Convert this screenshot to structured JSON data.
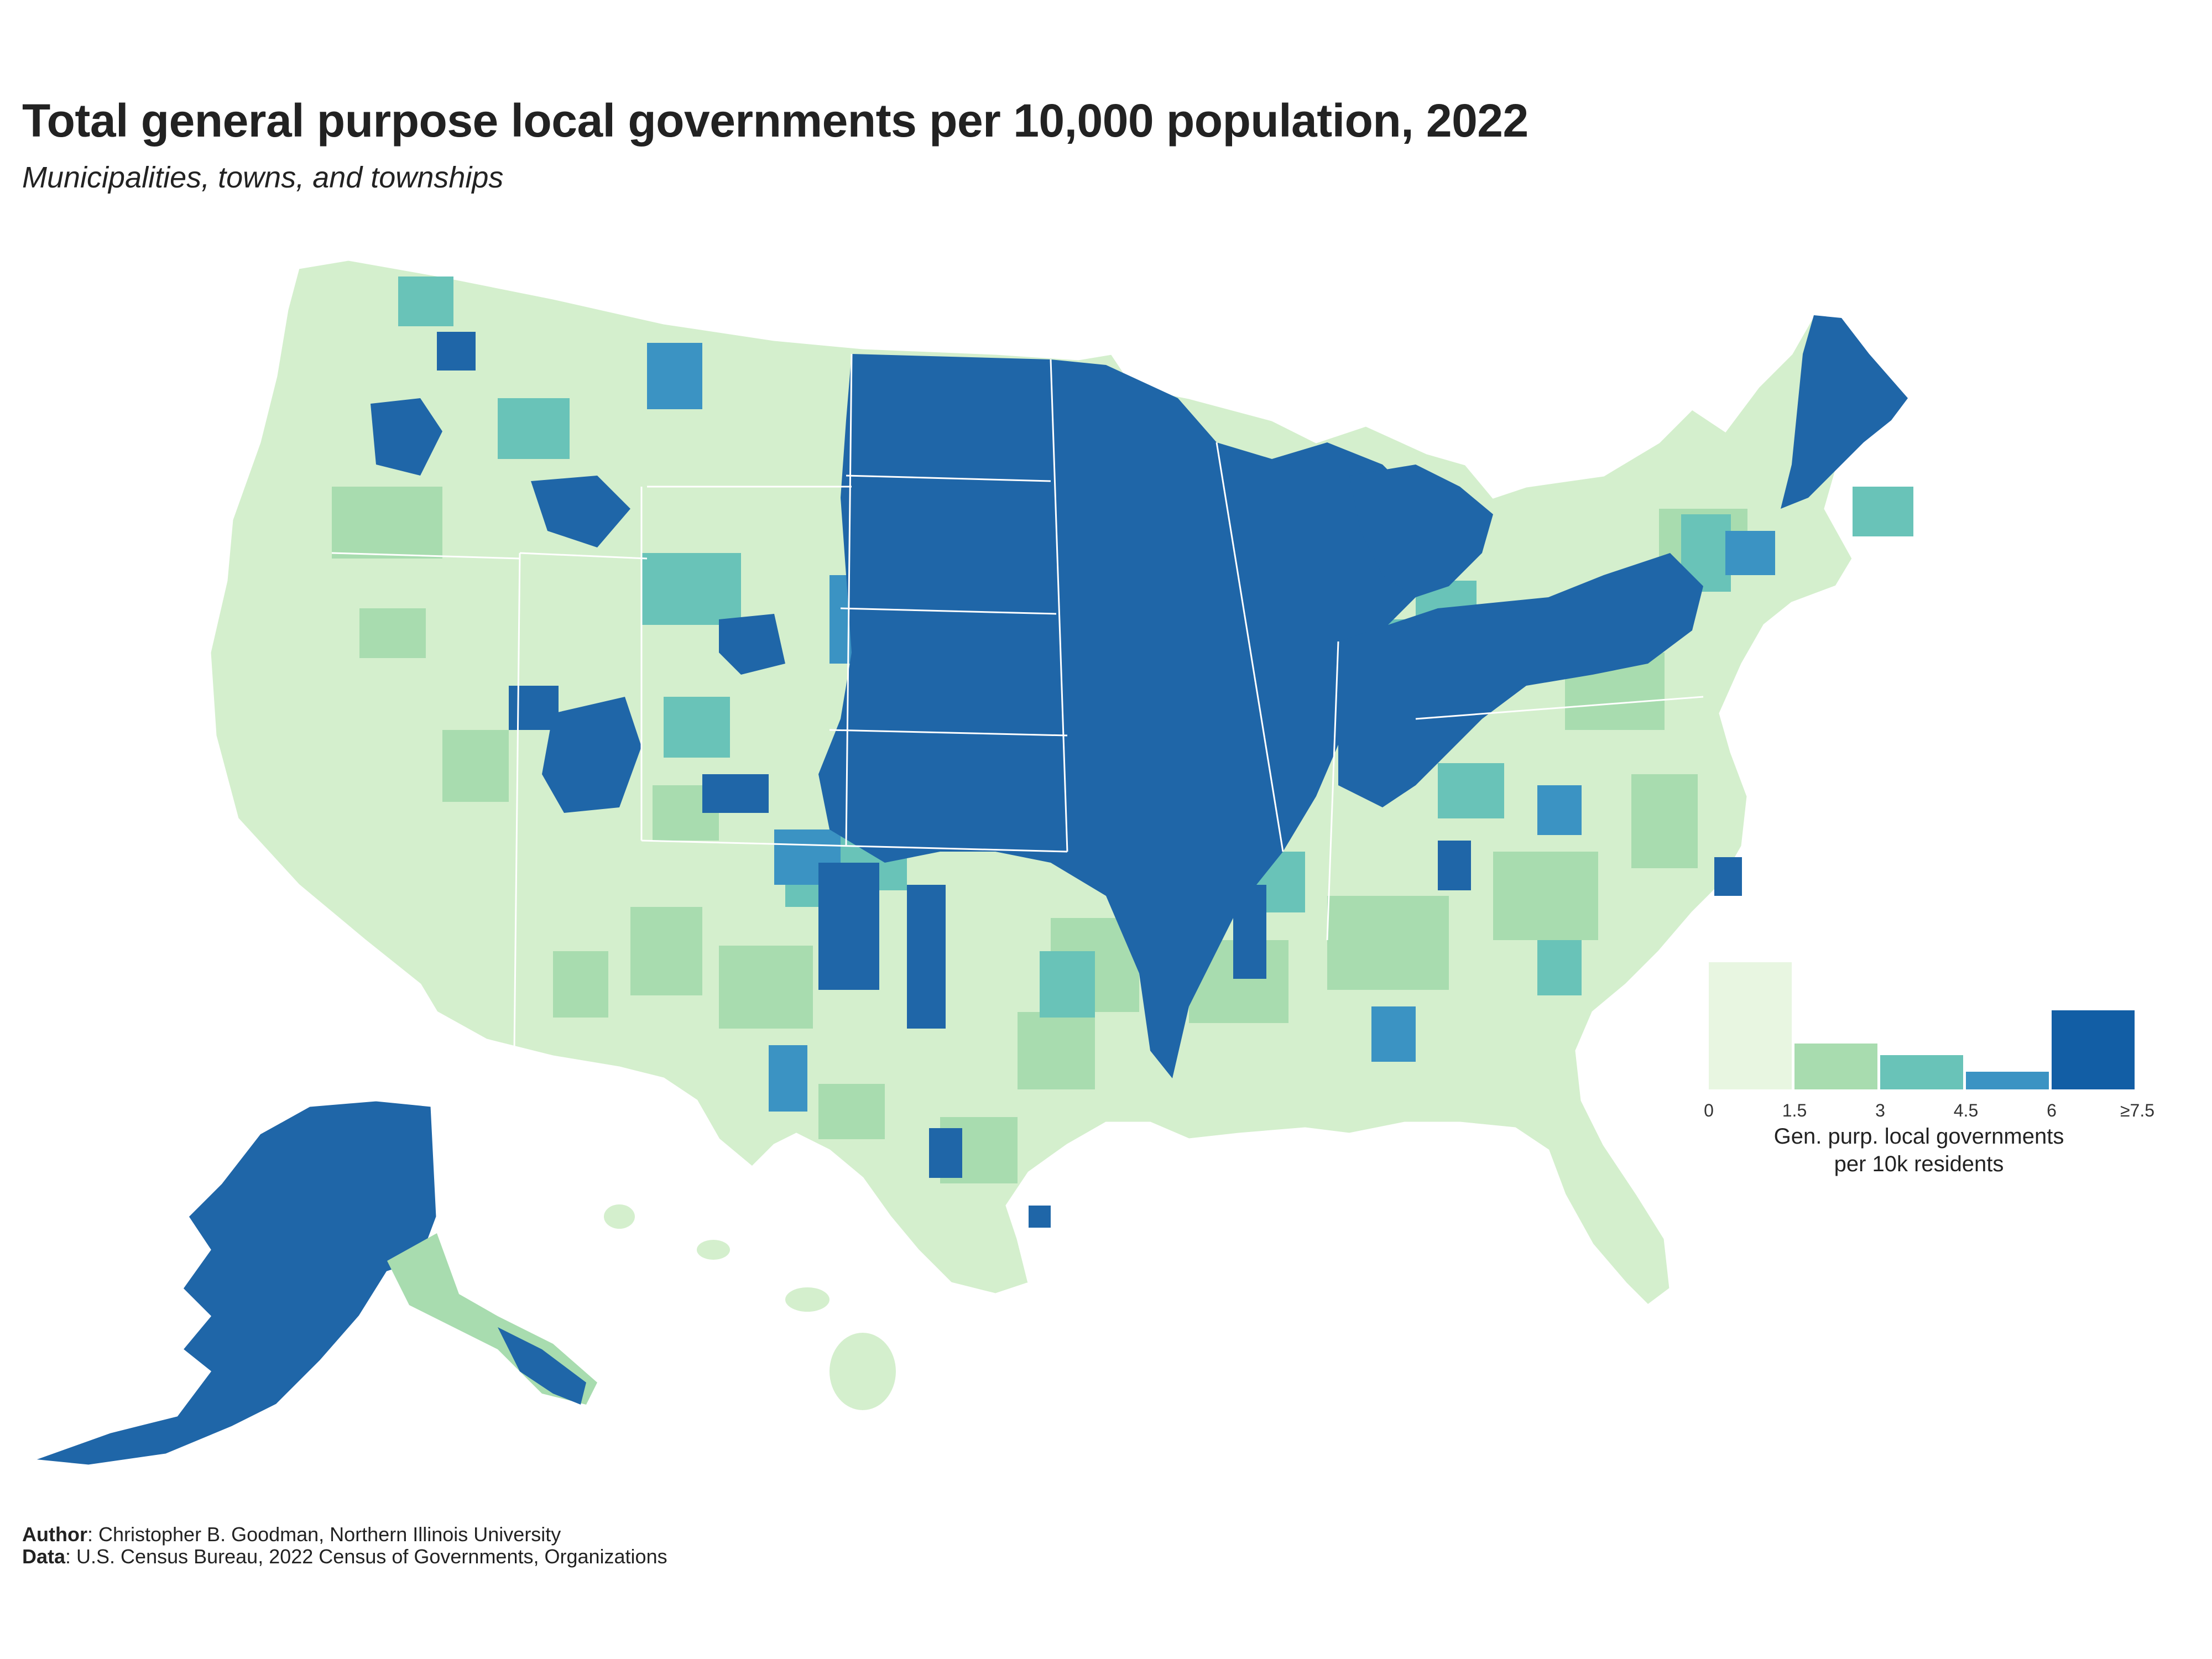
{
  "title": "Total general purpose local governments per 10,000 population, 2022",
  "subtitle": "Municipalities, towns, and townships",
  "legend": {
    "title_line1": "Gen. purp. local governments",
    "title_line2": "per 10k residents",
    "ticks": [
      "0",
      "1.5",
      "3",
      "4.5",
      "6",
      "≥7.5"
    ],
    "bins": [
      {
        "range": "0–1.5",
        "color": "#e8f6e1",
        "share": 1.0
      },
      {
        "range": "1.5–3",
        "color": "#a8dcaf",
        "share": 0.36
      },
      {
        "range": "3–4.5",
        "color": "#69c3b8",
        "share": 0.27
      },
      {
        "range": "4.5–6",
        "color": "#3b93c3",
        "share": 0.14
      },
      {
        "range": "≥7.5",
        "color": "#125ea5",
        "share": 0.62
      }
    ]
  },
  "colors": {
    "base": "#d4efcd",
    "light": "#a8dcaf",
    "mid": "#69c3b8",
    "blue": "#3b93c3",
    "dark": "#1f66a8"
  },
  "footer": {
    "author_label": "Author",
    "author_text": ": Christopher B. Goodman, Northern Illinois University",
    "data_label": "Data",
    "data_text": ": U.S. Census Bureau, 2022 Census of Governments, Organizations"
  }
}
